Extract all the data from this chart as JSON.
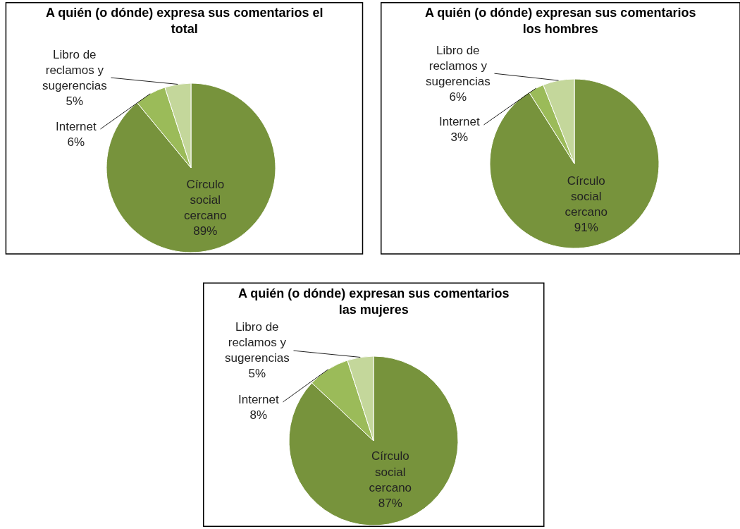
{
  "chart_data": [
    {
      "type": "pie",
      "title": "A quién (o dónde) expresa sus comentarios el total",
      "categories": [
        "Círculo social cercano",
        "Internet",
        "Libro de reclamos y sugerencias"
      ],
      "values": [
        89,
        6,
        5
      ],
      "value_labels": [
        "89%",
        "6%",
        "5%"
      ],
      "colors": [
        "#77933c",
        "#9bbb59",
        "#c4d79b"
      ]
    },
    {
      "type": "pie",
      "title": "A quién (o dónde) expresan sus comentarios los hombres",
      "categories": [
        "Círculo social cercano",
        "Internet",
        "Libro de reclamos y sugerencias"
      ],
      "values": [
        91,
        3,
        6
      ],
      "value_labels": [
        "91%",
        "3%",
        "6%"
      ],
      "colors": [
        "#77933c",
        "#9bbb59",
        "#c4d79b"
      ]
    },
    {
      "type": "pie",
      "title": "A quién (o dónde) expresan sus comentarios las mujeres",
      "categories": [
        "Círculo social cercano",
        "Internet",
        "Libro de reclamos y sugerencias"
      ],
      "values": [
        87,
        8,
        5
      ],
      "value_labels": [
        "87%",
        "8%",
        "5%"
      ],
      "colors": [
        "#77933c",
        "#9bbb59",
        "#c4d79b"
      ]
    }
  ]
}
